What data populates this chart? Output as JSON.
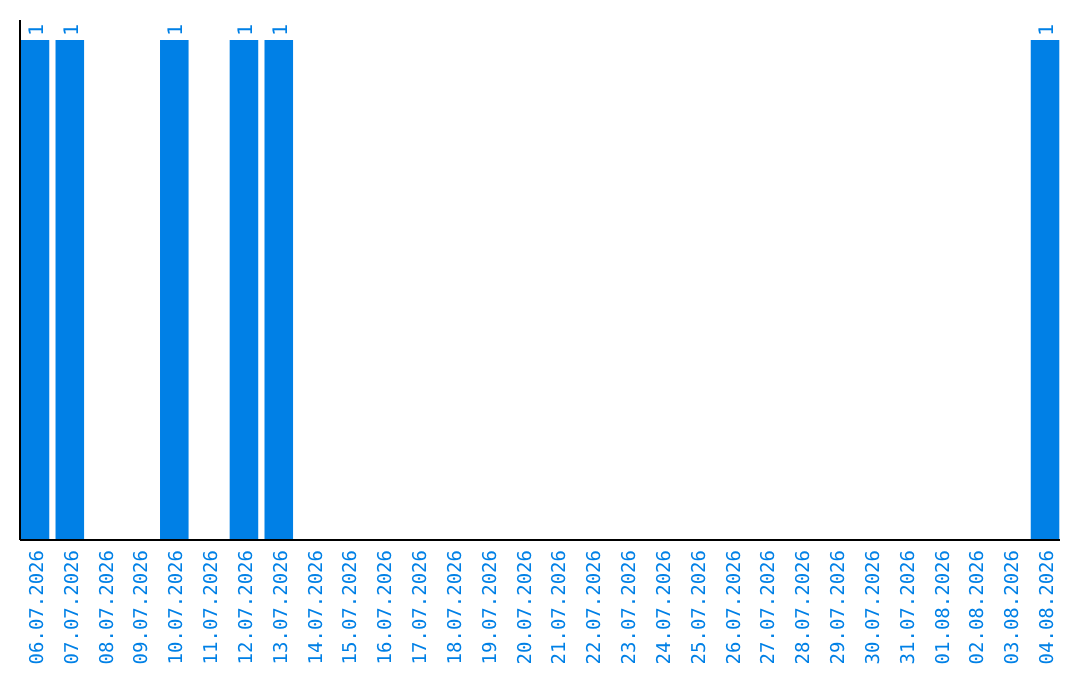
{
  "chart_data": {
    "type": "bar",
    "categories": [
      "06.07.2026",
      "07.07.2026",
      "08.07.2026",
      "09.07.2026",
      "10.07.2026",
      "11.07.2026",
      "12.07.2026",
      "13.07.2026",
      "14.07.2026",
      "15.07.2026",
      "16.07.2026",
      "17.07.2026",
      "18.07.2026",
      "19.07.2026",
      "20.07.2026",
      "21.07.2026",
      "22.07.2026",
      "23.07.2026",
      "24.07.2026",
      "25.07.2026",
      "26.07.2026",
      "27.07.2026",
      "28.07.2026",
      "29.07.2026",
      "30.07.2026",
      "31.07.2026",
      "01.08.2026",
      "02.08.2026",
      "03.08.2026",
      "04.08.2026"
    ],
    "values": [
      1,
      1,
      0,
      0,
      1,
      0,
      1,
      1,
      0,
      0,
      0,
      0,
      0,
      0,
      0,
      0,
      0,
      0,
      0,
      0,
      0,
      0,
      0,
      0,
      0,
      0,
      0,
      0,
      0,
      1
    ],
    "value_labels": [
      "1",
      "1",
      null,
      null,
      "1",
      null,
      "1",
      "1",
      null,
      null,
      null,
      null,
      null,
      null,
      null,
      null,
      null,
      null,
      null,
      null,
      null,
      null,
      null,
      null,
      null,
      null,
      null,
      null,
      null,
      "1"
    ],
    "color": "#0080e6"
  }
}
